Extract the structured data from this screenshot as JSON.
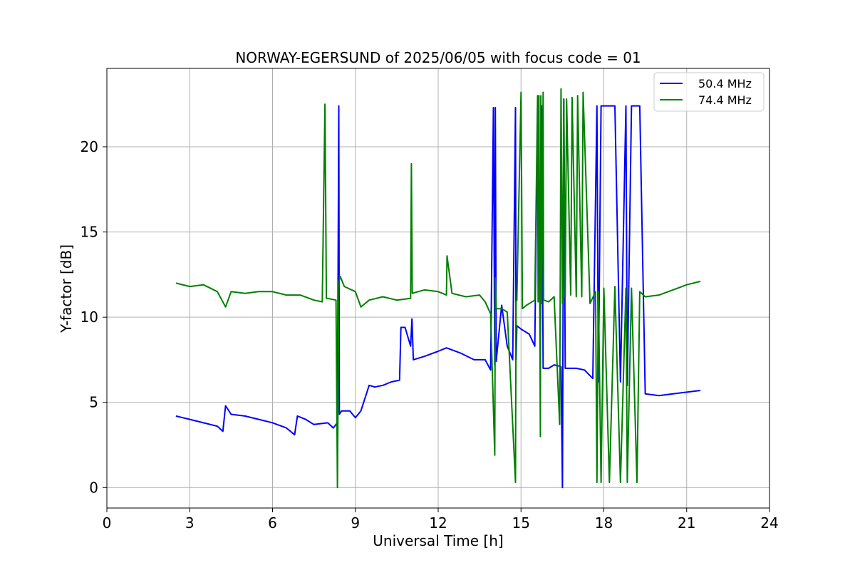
{
  "chart_data": {
    "type": "line",
    "title": "NORWAY-EGERSUND of 2025/06/05 with focus code = 01",
    "xlabel": "Universal Time [h]",
    "ylabel": "Y-factor [dB]",
    "xlim": [
      0,
      24
    ],
    "ylim": [
      -1.2,
      24.6
    ],
    "xticks": [
      0,
      3,
      6,
      9,
      12,
      15,
      18,
      21,
      24
    ],
    "yticks": [
      0,
      5,
      10,
      15,
      20
    ],
    "grid": true,
    "legend_position": "top-right",
    "series": [
      {
        "name": "50.4 MHz",
        "color": "#0000ff",
        "x": [
          2.5,
          3.0,
          3.5,
          4.0,
          4.2,
          4.3,
          4.5,
          5.0,
          5.5,
          6.0,
          6.5,
          6.8,
          6.9,
          7.2,
          7.5,
          8.0,
          8.2,
          8.35,
          8.4,
          8.42,
          8.5,
          8.8,
          9.0,
          9.2,
          9.3,
          9.5,
          9.7,
          10.0,
          10.3,
          10.6,
          10.65,
          10.8,
          11.0,
          11.05,
          11.1,
          11.5,
          12.0,
          12.3,
          12.8,
          13.3,
          13.7,
          13.9,
          14.0,
          14.05,
          14.07,
          14.1,
          14.3,
          14.5,
          14.7,
          14.8,
          14.82,
          14.85,
          15.0,
          15.3,
          15.5,
          15.6,
          15.7,
          15.75,
          15.8,
          16.0,
          16.2,
          16.45,
          16.5,
          16.55,
          16.6,
          17.0,
          17.3,
          17.6,
          17.75,
          17.8,
          17.9,
          18.0,
          18.2,
          18.4,
          18.6,
          18.8,
          18.85,
          19.0,
          19.2,
          19.3,
          19.5,
          20.0,
          20.5,
          21.0,
          21.5
        ],
        "values": [
          4.2,
          4.0,
          3.8,
          3.6,
          3.3,
          4.8,
          4.3,
          4.2,
          4.0,
          3.8,
          3.5,
          3.1,
          4.2,
          4.0,
          3.7,
          3.8,
          3.5,
          3.8,
          22.4,
          4.3,
          4.5,
          4.5,
          4.1,
          4.5,
          5.0,
          6.0,
          5.9,
          6.0,
          6.2,
          6.3,
          9.4,
          9.4,
          8.3,
          9.9,
          7.5,
          7.7,
          8.0,
          8.2,
          7.9,
          7.5,
          7.5,
          6.9,
          22.3,
          7.2,
          22.3,
          7.4,
          10.7,
          8.3,
          7.5,
          22.3,
          7.5,
          9.5,
          9.3,
          9.0,
          8.3,
          22.4,
          8.0,
          22.4,
          7.0,
          7.0,
          7.2,
          7.1,
          0.0,
          22.8,
          7.0,
          7.0,
          6.9,
          6.4,
          22.4,
          6.2,
          22.4,
          22.4,
          22.4,
          22.4,
          6.2,
          22.4,
          6.0,
          22.4,
          22.4,
          22.4,
          5.5,
          5.4,
          5.5,
          5.6,
          5.7
        ]
      },
      {
        "name": "74.4 MHz",
        "color": "#008000",
        "x": [
          2.5,
          3.0,
          3.5,
          4.0,
          4.3,
          4.5,
          5.0,
          5.5,
          6.0,
          6.5,
          7.0,
          7.5,
          7.8,
          7.9,
          7.95,
          8.0,
          8.3,
          8.35,
          8.4,
          8.45,
          8.6,
          9.0,
          9.2,
          9.5,
          10.0,
          10.5,
          11.0,
          11.03,
          11.06,
          11.5,
          12.0,
          12.3,
          12.32,
          12.5,
          13.0,
          13.5,
          13.7,
          13.9,
          14.05,
          14.07,
          14.1,
          14.3,
          14.5,
          14.8,
          14.82,
          14.85,
          15.0,
          15.05,
          15.2,
          15.5,
          15.6,
          15.62,
          15.65,
          15.7,
          15.72,
          15.75,
          15.8,
          15.82,
          16.0,
          16.2,
          16.4,
          16.45,
          16.5,
          16.55,
          16.6,
          16.65,
          16.8,
          16.85,
          17.0,
          17.05,
          17.2,
          17.25,
          17.5,
          17.7,
          17.75,
          17.8,
          17.9,
          18.0,
          18.2,
          18.4,
          18.6,
          18.8,
          18.85,
          19.0,
          19.2,
          19.3,
          19.5,
          20.0,
          20.5,
          21.0,
          21.5
        ],
        "values": [
          12.0,
          11.8,
          11.9,
          11.5,
          10.6,
          11.5,
          11.4,
          11.5,
          11.5,
          11.3,
          11.3,
          11.0,
          10.9,
          22.5,
          11.1,
          11.1,
          11.0,
          0.0,
          12.0,
          12.4,
          11.8,
          11.5,
          10.6,
          11.0,
          11.2,
          11.0,
          11.1,
          19.0,
          11.4,
          11.6,
          11.5,
          11.3,
          13.6,
          11.4,
          11.2,
          11.3,
          10.9,
          10.2,
          1.9,
          12.3,
          10.5,
          10.5,
          10.3,
          0.3,
          10.9,
          11.0,
          23.2,
          10.5,
          10.7,
          11.0,
          23.0,
          10.9,
          23.0,
          3.0,
          23.0,
          10.8,
          23.2,
          11.0,
          10.9,
          11.2,
          3.7,
          23.4,
          10.8,
          22.8,
          11.2,
          22.8,
          11.3,
          22.9,
          11.2,
          23.0,
          11.2,
          23.2,
          10.8,
          11.5,
          0.3,
          11.5,
          0.3,
          11.7,
          0.3,
          11.8,
          0.3,
          11.7,
          0.3,
          11.7,
          0.3,
          11.5,
          11.2,
          11.3,
          11.6,
          11.9,
          12.1
        ]
      }
    ]
  }
}
